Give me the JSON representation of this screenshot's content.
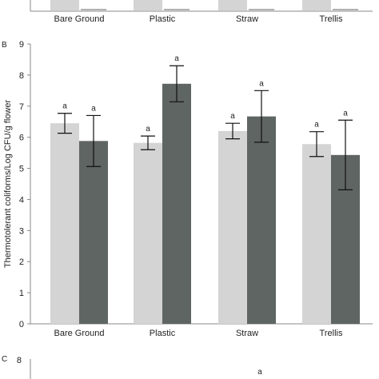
{
  "panels": {
    "top_categories": [
      "Bare Ground",
      "Plastic",
      "Straw",
      "Trellis"
    ],
    "letter_b": "B",
    "letter_c": "C",
    "c_y_tick": "8",
    "c_sig_label": "a"
  },
  "chart_data": {
    "type": "bar",
    "title": "",
    "xlabel": "",
    "ylabel": "Thermotolerant coliforms/Log CFU/g flower",
    "ylim": [
      0,
      9
    ],
    "yticks": [
      "0",
      "1",
      "2",
      "3",
      "4",
      "5",
      "6",
      "7",
      "8",
      "9"
    ],
    "categories": [
      "Bare Ground",
      "Plastic",
      "Straw",
      "Trellis"
    ],
    "series": [
      {
        "color": "#d4d4d4",
        "values": [
          6.45,
          5.82,
          6.2,
          5.78
        ],
        "errors": [
          0.32,
          0.22,
          0.25,
          0.4
        ]
      },
      {
        "color": "#5f6563",
        "values": [
          5.88,
          7.72,
          6.67,
          5.43
        ],
        "errors": [
          0.82,
          0.58,
          0.83,
          1.12
        ]
      }
    ],
    "significance": [
      [
        "a",
        "a",
        "a",
        "a"
      ],
      [
        "a",
        "a",
        "a",
        "a"
      ]
    ],
    "grid": false,
    "legend": "none"
  }
}
